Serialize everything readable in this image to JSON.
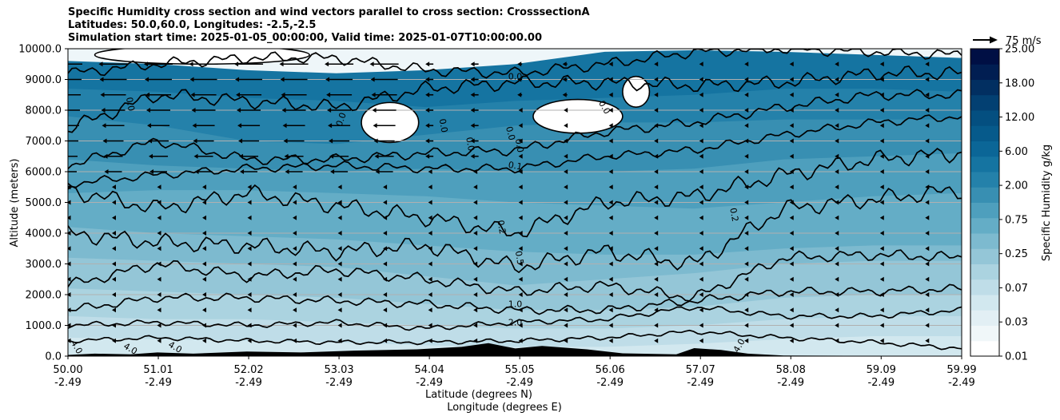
{
  "title_lines": [
    "Specific Humidity cross section and wind vectors parallel to cross section: CrosssectionA",
    "Latitudes: 50.0,60.0, Longitudes: -2.5,-2.5",
    "Simulation start time: 2025-01-05_00:00:00, Valid time: 2025-01-07T10:00:00.00"
  ],
  "chart_data": {
    "type": "heatmap",
    "ylabel": "Altitude (meters)",
    "xlabel_line1": "Latitude (degrees N)",
    "xlabel_line2": "Longitude (degrees E)",
    "ylim": [
      0,
      10000
    ],
    "xlim": [
      50.0,
      59.99
    ],
    "yticks": [
      "0.0",
      "1000.0",
      "2000.0",
      "3000.0",
      "4000.0",
      "5000.0",
      "6000.0",
      "7000.0",
      "8000.0",
      "9000.0",
      "10000.0"
    ],
    "ytick_values": [
      0,
      1000,
      2000,
      3000,
      4000,
      5000,
      6000,
      7000,
      8000,
      9000,
      10000
    ],
    "xticks_lat": [
      "50.00",
      "51.01",
      "52.02",
      "53.03",
      "54.04",
      "55.05",
      "56.06",
      "57.07",
      "58.08",
      "59.09",
      "59.99"
    ],
    "xticks_lon": [
      "-2.49",
      "-2.49",
      "-2.49",
      "-2.49",
      "-2.49",
      "-2.49",
      "-2.49",
      "-2.49",
      "-2.49",
      "-2.49",
      "-2.49"
    ],
    "grid": "horizontal",
    "colorbar": {
      "label": "Specific Humidity g/kg",
      "tick_labels": [
        "0.01",
        "0.03",
        "0.07",
        "0.25",
        "0.75",
        "2.00",
        "6.00",
        "12.00",
        "18.00",
        "25.00"
      ],
      "colors": [
        "#ffffff",
        "#f0f7f9",
        "#e2eff4",
        "#d2e8ef",
        "#bfdde8",
        "#abd3e0",
        "#94c6d7",
        "#7dbacf",
        "#64adc6",
        "#4e9fbd",
        "#388fb2",
        "#2481aa",
        "#1574a1",
        "#0b6697",
        "#065a8b",
        "#044f80",
        "#034072",
        "#022f61",
        "#011e52",
        "#000f44"
      ]
    },
    "wind_vector_key": "75 m/s",
    "contour_labels": [
      "0.0",
      "0.0",
      "0.0",
      "0.0",
      "0.0",
      "0.0",
      "0.0",
      "0.0",
      "0.1",
      "0.2",
      "0.2",
      "0.5",
      "1.0",
      "2.0",
      "4.0",
      "4.0",
      "4.0",
      "4.0"
    ],
    "contour_levels": [
      0.0,
      0.1,
      0.2,
      0.5,
      1.0,
      2.0,
      4.0
    ]
  }
}
